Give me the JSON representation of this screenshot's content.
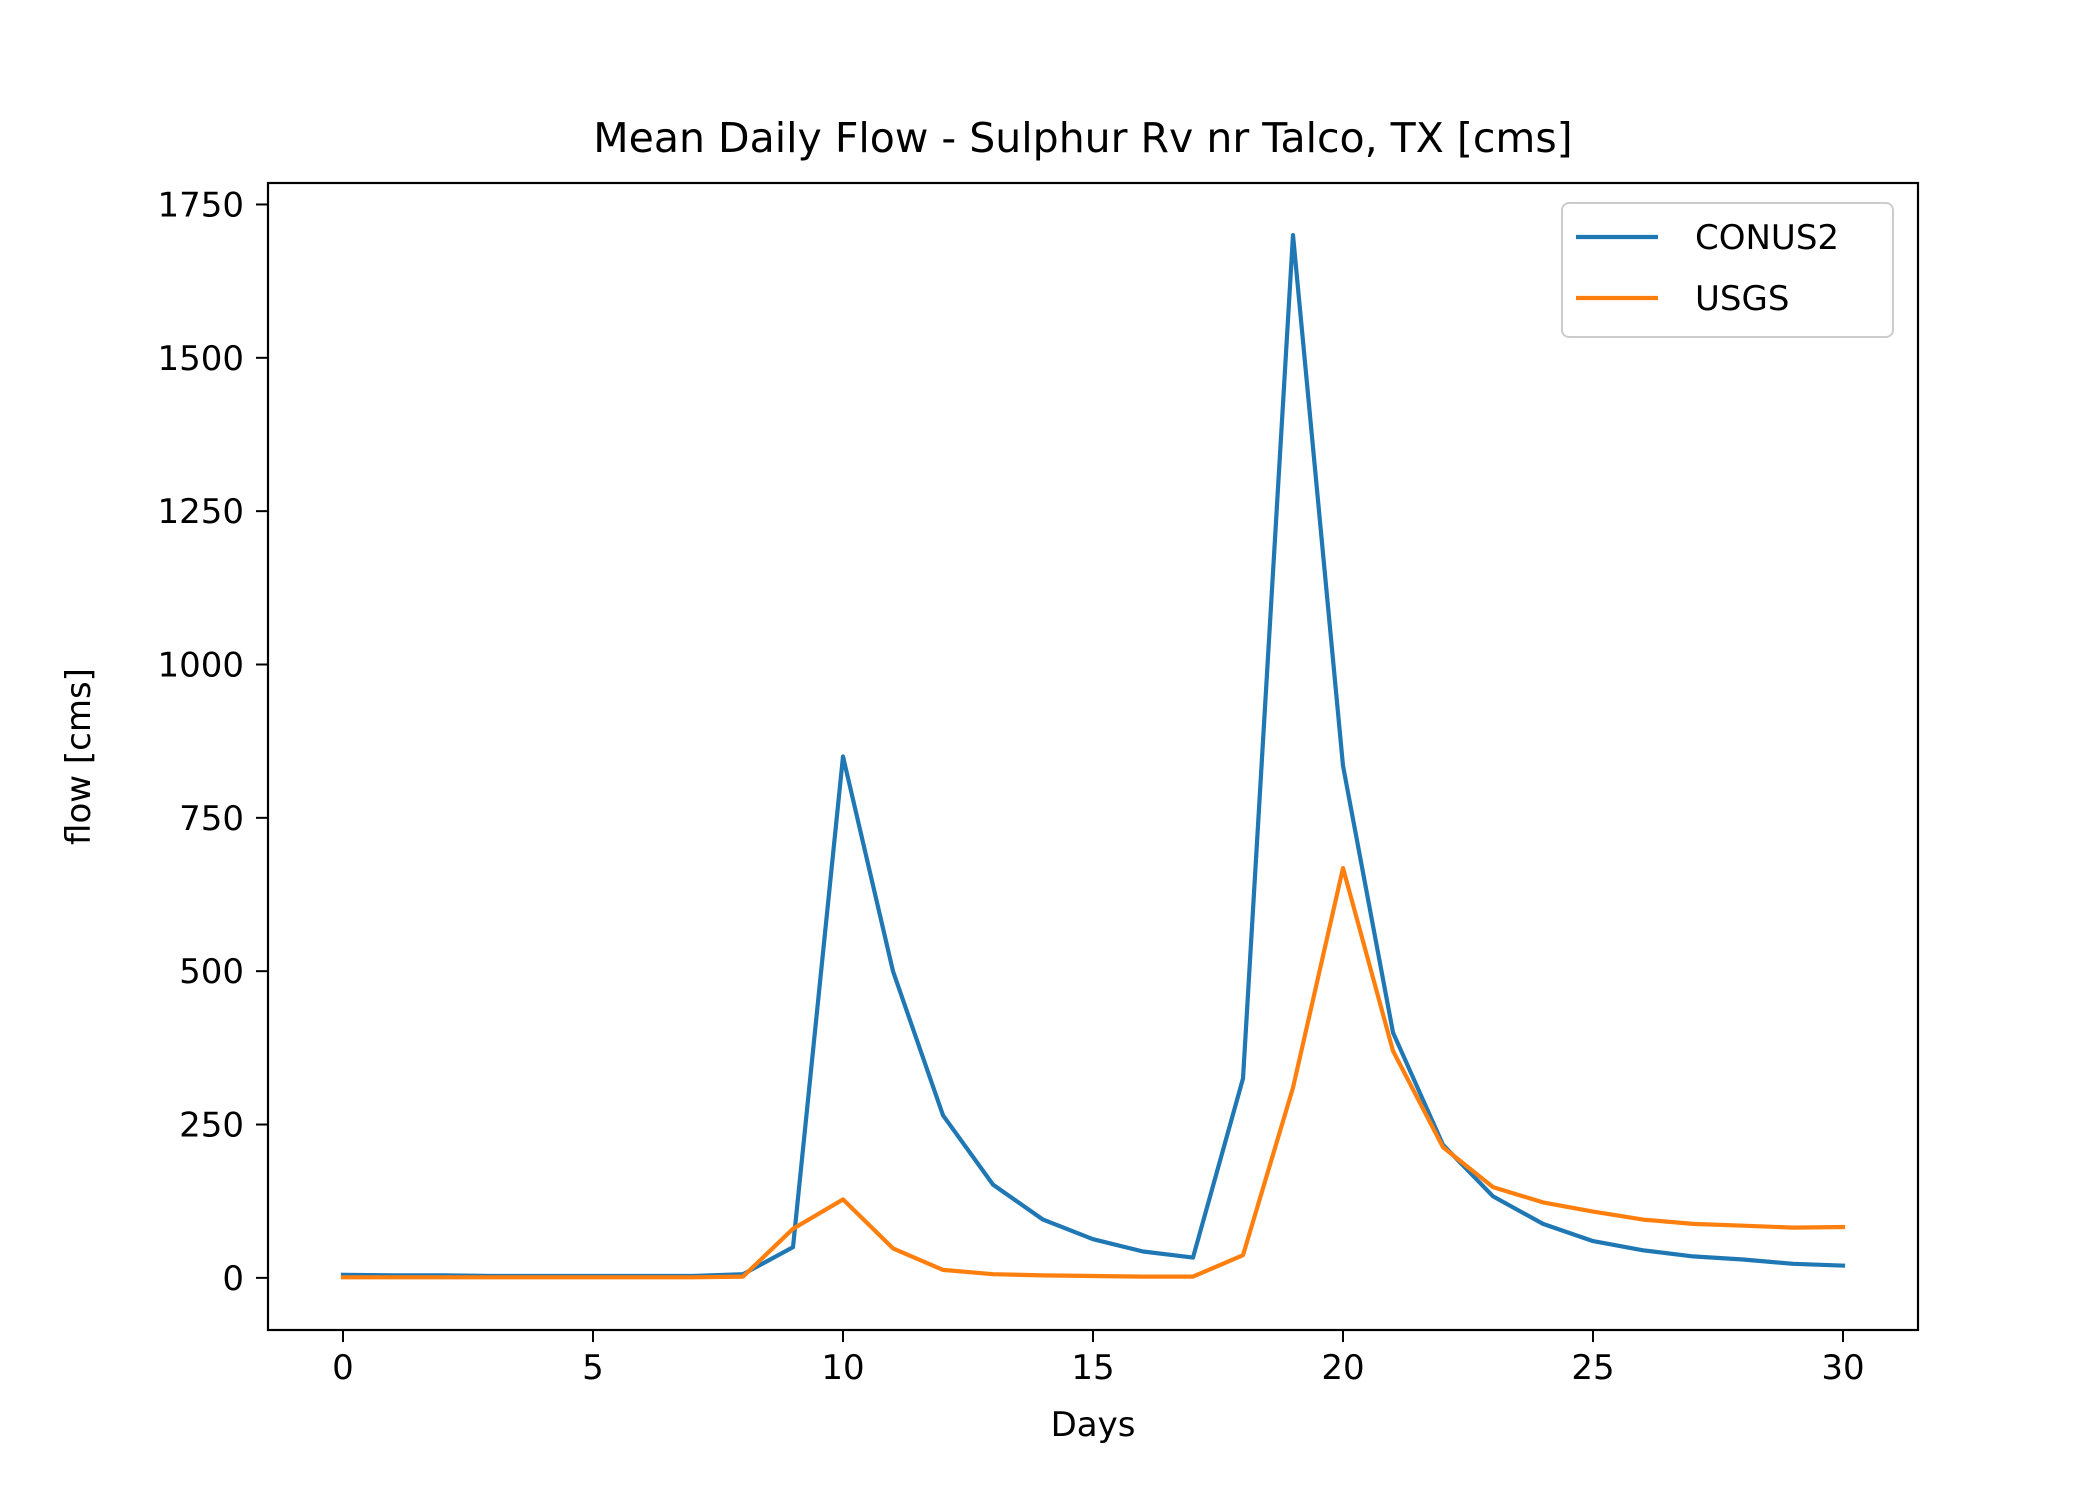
{
  "chart_data": {
    "type": "line",
    "title": "Mean Daily Flow - Sulphur Rv nr Talco, TX [cms]",
    "xlabel": "Days",
    "ylabel": "flow [cms]",
    "xlim": [
      -1.5,
      31.5
    ],
    "ylim": [
      -85,
      1785
    ],
    "xticks": [
      0,
      5,
      10,
      15,
      20,
      25,
      30
    ],
    "yticks": [
      0,
      250,
      500,
      750,
      1000,
      1250,
      1500,
      1750
    ],
    "grid": false,
    "legend_position": "top-right",
    "x": [
      0,
      1,
      2,
      3,
      4,
      5,
      6,
      7,
      8,
      9,
      10,
      11,
      12,
      13,
      14,
      15,
      16,
      17,
      18,
      19,
      20,
      21,
      22,
      23,
      24,
      25,
      26,
      27,
      28,
      29,
      30
    ],
    "series": [
      {
        "name": "CONUS2",
        "color": "#1f77b4",
        "values": [
          5,
          4,
          4,
          3,
          3,
          3,
          3,
          3,
          6,
          50,
          850,
          500,
          265,
          152,
          95,
          63,
          43,
          33,
          325,
          1700,
          835,
          400,
          217,
          133,
          88,
          60,
          45,
          35,
          30,
          23,
          20
        ]
      },
      {
        "name": "USGS",
        "color": "#ff7f0e",
        "values": [
          1,
          1,
          1,
          1,
          1,
          1,
          1,
          1,
          2,
          80,
          128,
          48,
          13,
          6,
          4,
          3,
          2,
          2,
          37,
          310,
          668,
          370,
          213,
          148,
          123,
          108,
          95,
          88,
          85,
          82,
          83
        ]
      }
    ]
  }
}
